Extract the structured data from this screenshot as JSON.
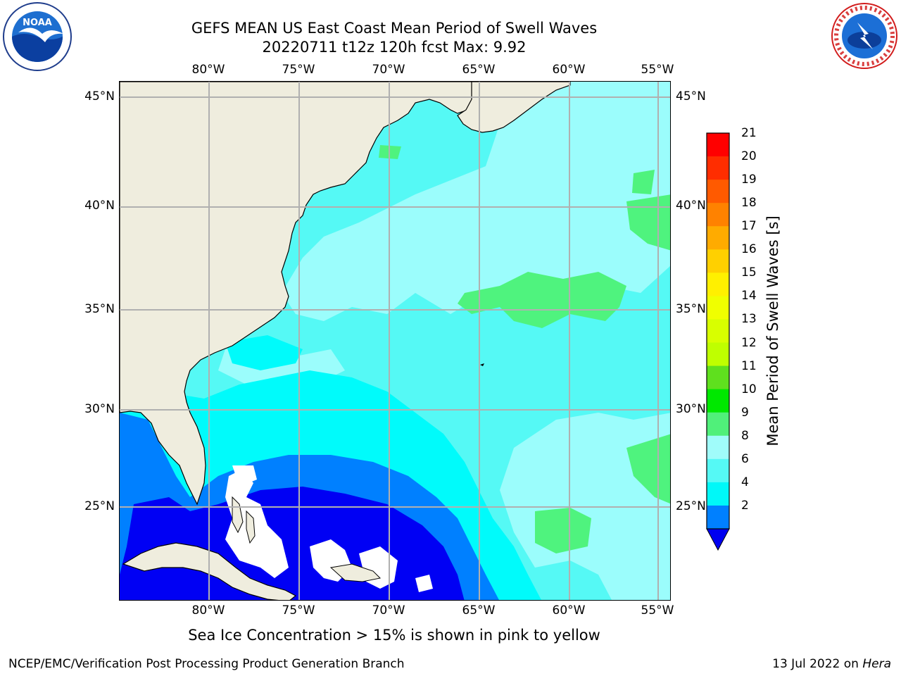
{
  "title": {
    "line1": "GEFS MEAN US East Coast Mean Period of Swell Waves",
    "line2": "20220711 t12z 120h fcst   Max: 9.92"
  },
  "map": {
    "longitude_labels": [
      "80°W",
      "75°W",
      "70°W",
      "65°W",
      "60°W",
      "55°W"
    ],
    "latitude_labels": [
      "45°N",
      "40°N",
      "35°N",
      "30°N",
      "25°N"
    ],
    "colors": {
      "land": "#efedde",
      "ocean_6_8": "#55f9f5",
      "ocean_8_9": "#9bfdfc",
      "ocean_9_10": "#4ff37e",
      "ocean_4_6": "#00fbfb",
      "ocean_2_4": "#0080ff",
      "ocean_lt_2": "#0000f4",
      "ice_or_missing": "#ffffff",
      "gridline": "#b0b0b0"
    }
  },
  "colorbar": {
    "label": "Mean Period of Swell Waves [s]",
    "ticks": [
      "21",
      "20",
      "19",
      "18",
      "17",
      "16",
      "15",
      "14",
      "13",
      "12",
      "11",
      "10",
      "9",
      "8",
      "6",
      "4",
      "2"
    ],
    "colors_top_to_bottom": [
      "#ff0000",
      "#ff2d00",
      "#ff5a00",
      "#ff8200",
      "#ffab00",
      "#ffd000",
      "#fff000",
      "#f0ff00",
      "#d8ff00",
      "#bfff00",
      "#5fe01e",
      "#00e800",
      "#50f07a",
      "#a0fcfa",
      "#55f9f5",
      "#00f8f8",
      "#0080ff"
    ],
    "under_color": "#0000f0"
  },
  "ice_note": "Sea Ice Concentration > 15% is shown in pink to yellow",
  "footer": {
    "left": "NCEP/EMC/Verification Post Processing Product Generation Branch",
    "right_date": "13 Jul 2022 on",
    "right_host": "Hera"
  },
  "logos": {
    "noaa_text": "NOAA",
    "nws_text": "NATIONAL WEATHER SERVICE"
  }
}
